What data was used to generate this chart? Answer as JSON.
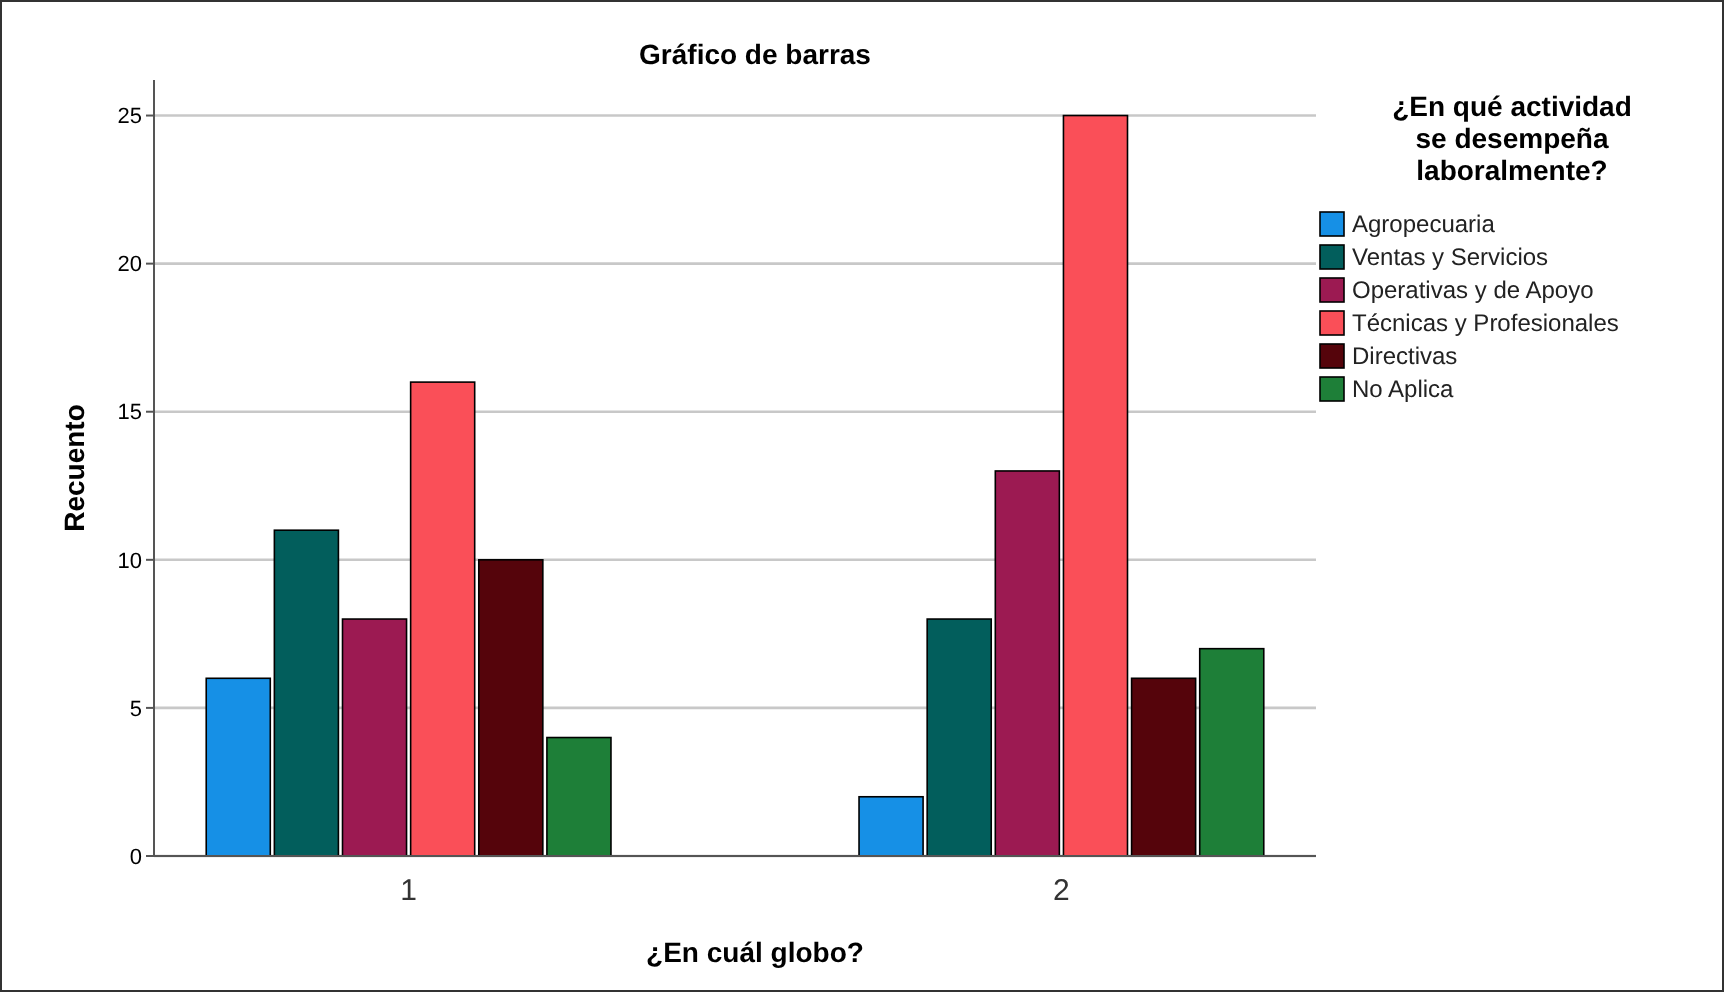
{
  "chart_data": {
    "type": "bar",
    "title": "Gráfico de barras",
    "xlabel": "¿En cuál globo?",
    "ylabel": "Recuento",
    "legend_title": "¿En qué actividad se desempeña laboralmente?",
    "categories": [
      "1",
      "2"
    ],
    "series": [
      {
        "name": "Agropecuaria",
        "color": "#1690e6",
        "values": [
          6,
          2
        ]
      },
      {
        "name": "Ventas y Servicios",
        "color": "#025e5c",
        "values": [
          11,
          8
        ]
      },
      {
        "name": "Operativas y de Apoyo",
        "color": "#9c1a52",
        "values": [
          8,
          13
        ]
      },
      {
        "name": "Técnicas y Profesionales",
        "color": "#fa4f58",
        "values": [
          16,
          25
        ]
      },
      {
        "name": "Directivas",
        "color": "#55040b",
        "values": [
          10,
          6
        ]
      },
      {
        "name": "No Aplica",
        "color": "#1e7f38",
        "values": [
          4,
          7
        ]
      }
    ],
    "ylim": [
      0,
      26.2
    ],
    "yticks": [
      0,
      5,
      10,
      15,
      20,
      25
    ],
    "grid": "y",
    "legend": "top right"
  }
}
